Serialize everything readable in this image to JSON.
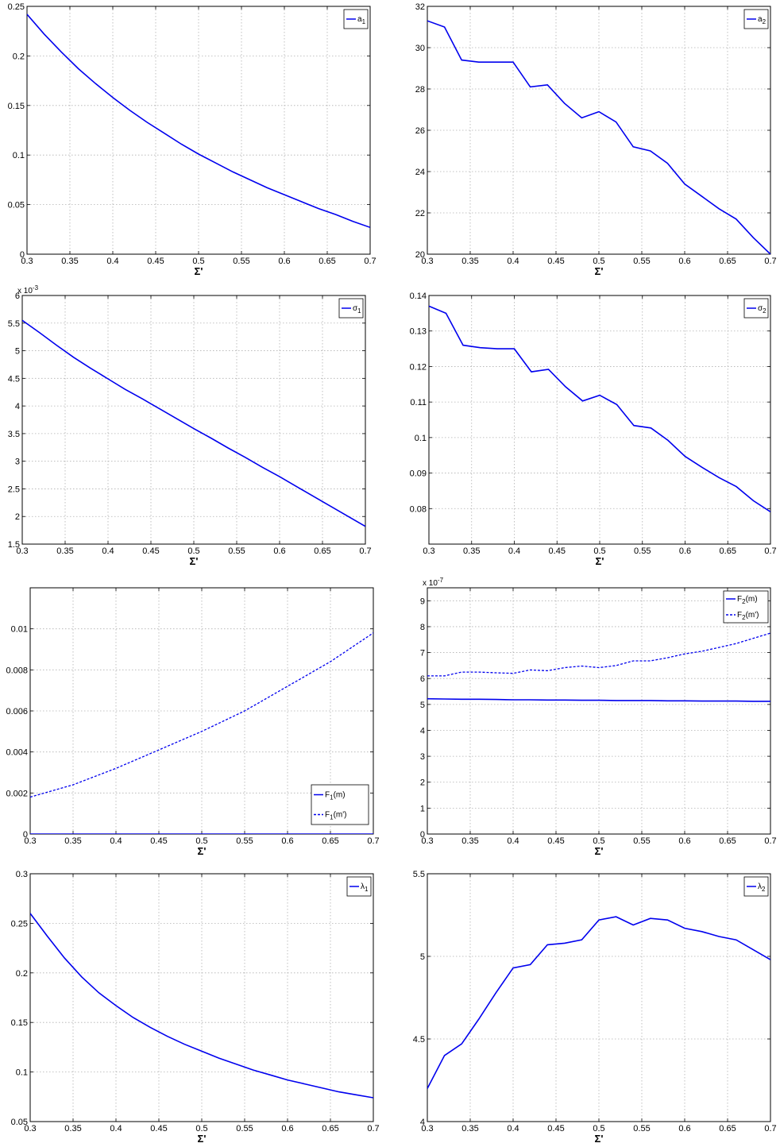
{
  "chart_data": [
    {
      "type": "line",
      "xlabel": "Σ'",
      "xlim": [
        0.3,
        0.7
      ],
      "ylim": [
        0,
        0.25
      ],
      "xticks": [
        "0.3",
        "0.35",
        "0.4",
        "0.45",
        "0.5",
        "0.55",
        "0.6",
        "0.65",
        "0.7"
      ],
      "yticks": [
        "0",
        "0.05",
        "0.1",
        "0.15",
        "0.2",
        "0.25"
      ],
      "grid": true,
      "legend_position": "top-right",
      "x": [
        0.3,
        0.32,
        0.34,
        0.36,
        0.38,
        0.4,
        0.42,
        0.44,
        0.46,
        0.48,
        0.5,
        0.52,
        0.54,
        0.56,
        0.58,
        0.6,
        0.62,
        0.64,
        0.66,
        0.68,
        0.7
      ],
      "series": [
        {
          "name": "a",
          "subscript": "1",
          "style": "solid",
          "values": [
            0.242,
            0.222,
            0.204,
            0.187,
            0.172,
            0.158,
            0.145,
            0.133,
            0.122,
            0.111,
            0.101,
            0.092,
            0.083,
            0.075,
            0.067,
            0.06,
            0.053,
            0.046,
            0.04,
            0.033,
            0.027
          ]
        }
      ]
    },
    {
      "type": "line",
      "xlabel": "Σ'",
      "xlim": [
        0.3,
        0.7
      ],
      "ylim": [
        20,
        32
      ],
      "xticks": [
        "0.3",
        "0.35",
        "0.4",
        "0.45",
        "0.5",
        "0.55",
        "0.6",
        "0.65",
        "0.7"
      ],
      "yticks": [
        "20",
        "22",
        "24",
        "26",
        "28",
        "30",
        "32"
      ],
      "grid": true,
      "legend_position": "top-right",
      "x": [
        0.3,
        0.32,
        0.34,
        0.36,
        0.38,
        0.4,
        0.42,
        0.44,
        0.46,
        0.48,
        0.5,
        0.52,
        0.54,
        0.56,
        0.58,
        0.6,
        0.62,
        0.64,
        0.66,
        0.68,
        0.7
      ],
      "series": [
        {
          "name": "a",
          "subscript": "2",
          "style": "solid",
          "values": [
            31.3,
            31.0,
            29.4,
            29.3,
            29.3,
            29.3,
            28.1,
            28.2,
            27.3,
            26.6,
            26.9,
            26.4,
            25.2,
            25.0,
            24.4,
            23.4,
            22.8,
            22.2,
            21.7,
            20.8,
            20.0
          ]
        }
      ]
    },
    {
      "type": "line",
      "xlabel": "Σ'",
      "xlim": [
        0.3,
        0.7
      ],
      "ylim": [
        1.5,
        6
      ],
      "multiplier": "x 10",
      "multiplier_exp": "-3",
      "xticks": [
        "0.3",
        "0.35",
        "0.4",
        "0.45",
        "0.5",
        "0.55",
        "0.6",
        "0.65",
        "0.7"
      ],
      "yticks": [
        "1.5",
        "2",
        "2.5",
        "3",
        "3.5",
        "4",
        "4.5",
        "5",
        "5.5",
        "6"
      ],
      "grid": true,
      "legend_position": "top-right",
      "x": [
        0.3,
        0.32,
        0.34,
        0.36,
        0.38,
        0.4,
        0.42,
        0.44,
        0.46,
        0.48,
        0.5,
        0.52,
        0.54,
        0.56,
        0.58,
        0.6,
        0.62,
        0.64,
        0.66,
        0.68,
        0.7
      ],
      "series": [
        {
          "name": "σ",
          "subscript": "1",
          "style": "solid",
          "values": [
            5.55,
            5.33,
            5.1,
            4.88,
            4.68,
            4.49,
            4.3,
            4.13,
            3.95,
            3.77,
            3.59,
            3.42,
            3.24,
            3.07,
            2.89,
            2.72,
            2.54,
            2.36,
            2.18,
            2.0,
            1.82
          ]
        }
      ]
    },
    {
      "type": "line",
      "xlabel": "Σ'",
      "xlim": [
        0.3,
        0.7
      ],
      "ylim": [
        0.07,
        0.14
      ],
      "xticks": [
        "0.3",
        "0.35",
        "0.4",
        "0.45",
        "0.5",
        "0.55",
        "0.6",
        "0.65",
        "0.7"
      ],
      "yticks": [
        "0.08",
        "0.09",
        "0.1",
        "0.11",
        "0.12",
        "0.13",
        "0.14"
      ],
      "grid": true,
      "legend_position": "top-right",
      "x": [
        0.3,
        0.32,
        0.34,
        0.36,
        0.38,
        0.4,
        0.42,
        0.44,
        0.46,
        0.48,
        0.5,
        0.52,
        0.54,
        0.56,
        0.58,
        0.6,
        0.62,
        0.64,
        0.66,
        0.68,
        0.7
      ],
      "series": [
        {
          "name": "σ",
          "subscript": "2",
          "style": "solid",
          "values": [
            0.137,
            0.135,
            0.126,
            0.1253,
            0.125,
            0.125,
            0.1185,
            0.1192,
            0.1143,
            0.1103,
            0.1119,
            0.1093,
            0.1034,
            0.1027,
            0.0992,
            0.0947,
            0.0916,
            0.0887,
            0.0862,
            0.0822,
            0.0791
          ]
        }
      ]
    },
    {
      "type": "line",
      "xlabel": "Σ'",
      "xlim": [
        0.3,
        0.7
      ],
      "ylim": [
        0,
        0.012
      ],
      "xticks": [
        "0.3",
        "0.35",
        "0.4",
        "0.45",
        "0.5",
        "0.55",
        "0.6",
        "0.65",
        "0.7"
      ],
      "yticks": [
        "0",
        "0.002",
        "0.004",
        "0.006",
        "0.008",
        "0.01"
      ],
      "grid": true,
      "legend_position": "bottom-right",
      "x": [
        0.3,
        0.35,
        0.4,
        0.45,
        0.5,
        0.55,
        0.6,
        0.65,
        0.7
      ],
      "series": [
        {
          "name": "F",
          "subscript": "1",
          "suffix": "(m)",
          "style": "solid",
          "values": [
            0,
            0,
            0,
            0,
            0,
            0,
            0,
            0,
            0
          ]
        },
        {
          "name": "F",
          "subscript": "1",
          "suffix": "(m')",
          "style": "dashed",
          "values": [
            0.0018,
            0.0024,
            0.0032,
            0.0041,
            0.005,
            0.006,
            0.0072,
            0.0084,
            0.0098
          ]
        }
      ]
    },
    {
      "type": "line",
      "xlabel": "Σ'",
      "xlim": [
        0.3,
        0.7
      ],
      "ylim": [
        0,
        9.5
      ],
      "multiplier": "x 10",
      "multiplier_exp": "-7",
      "xticks": [
        "0.3",
        "0.35",
        "0.4",
        "0.45",
        "0.5",
        "0.55",
        "0.6",
        "0.65",
        "0.7"
      ],
      "yticks": [
        "0",
        "1",
        "2",
        "3",
        "4",
        "5",
        "6",
        "7",
        "8",
        "9"
      ],
      "grid": true,
      "legend_position": "top-right",
      "x": [
        0.3,
        0.32,
        0.34,
        0.36,
        0.38,
        0.4,
        0.42,
        0.44,
        0.46,
        0.48,
        0.5,
        0.52,
        0.54,
        0.56,
        0.58,
        0.6,
        0.62,
        0.64,
        0.66,
        0.68,
        0.7
      ],
      "series": [
        {
          "name": "F",
          "subscript": "2",
          "suffix": "(m)",
          "style": "solid",
          "values": [
            5.22,
            5.21,
            5.2,
            5.2,
            5.19,
            5.18,
            5.18,
            5.17,
            5.17,
            5.16,
            5.16,
            5.15,
            5.15,
            5.15,
            5.14,
            5.14,
            5.13,
            5.13,
            5.13,
            5.12,
            5.12
          ]
        },
        {
          "name": "F",
          "subscript": "2",
          "suffix": "(m')",
          "style": "dashed",
          "values": [
            6.1,
            6.1,
            6.25,
            6.25,
            6.22,
            6.2,
            6.33,
            6.3,
            6.42,
            6.48,
            6.42,
            6.5,
            6.68,
            6.68,
            6.8,
            6.95,
            7.05,
            7.2,
            7.35,
            7.55,
            7.75
          ]
        }
      ]
    },
    {
      "type": "line",
      "xlabel": "Σ'",
      "xlim": [
        0.3,
        0.7
      ],
      "ylim": [
        0.05,
        0.3
      ],
      "xticks": [
        "0.3",
        "0.35",
        "0.4",
        "0.45",
        "0.5",
        "0.55",
        "0.6",
        "0.65",
        "0.7"
      ],
      "yticks": [
        "0.05",
        "0.1",
        "0.15",
        "0.2",
        "0.25",
        "0.3"
      ],
      "grid": true,
      "legend_position": "top-right",
      "x": [
        0.3,
        0.32,
        0.34,
        0.36,
        0.38,
        0.4,
        0.42,
        0.44,
        0.46,
        0.48,
        0.5,
        0.52,
        0.54,
        0.56,
        0.58,
        0.6,
        0.62,
        0.64,
        0.66,
        0.68,
        0.7
      ],
      "series": [
        {
          "name": "λ",
          "subscript": "1",
          "style": "solid",
          "values": [
            0.26,
            0.237,
            0.215,
            0.196,
            0.18,
            0.167,
            0.155,
            0.145,
            0.136,
            0.128,
            0.121,
            0.114,
            0.108,
            0.102,
            0.097,
            0.092,
            0.088,
            0.084,
            0.08,
            0.077,
            0.074
          ]
        }
      ]
    },
    {
      "type": "line",
      "xlabel": "Σ'",
      "xlim": [
        0.3,
        0.7
      ],
      "ylim": [
        4,
        5.5
      ],
      "xticks": [
        "0.3",
        "0.35",
        "0.4",
        "0.45",
        "0.5",
        "0.55",
        "0.6",
        "0.65",
        "0.7"
      ],
      "yticks": [
        "4",
        "4.5",
        "5",
        "5.5"
      ],
      "grid": true,
      "legend_position": "top-right",
      "x": [
        0.3,
        0.32,
        0.34,
        0.36,
        0.38,
        0.4,
        0.42,
        0.44,
        0.46,
        0.48,
        0.5,
        0.52,
        0.54,
        0.56,
        0.58,
        0.6,
        0.62,
        0.64,
        0.66,
        0.68,
        0.7
      ],
      "series": [
        {
          "name": "λ",
          "subscript": "2",
          "style": "solid",
          "values": [
            4.2,
            4.4,
            4.47,
            4.62,
            4.78,
            4.93,
            4.95,
            5.07,
            5.08,
            5.1,
            5.22,
            5.24,
            5.19,
            5.23,
            5.22,
            5.17,
            5.15,
            5.12,
            5.1,
            5.04,
            4.98
          ]
        }
      ]
    }
  ]
}
